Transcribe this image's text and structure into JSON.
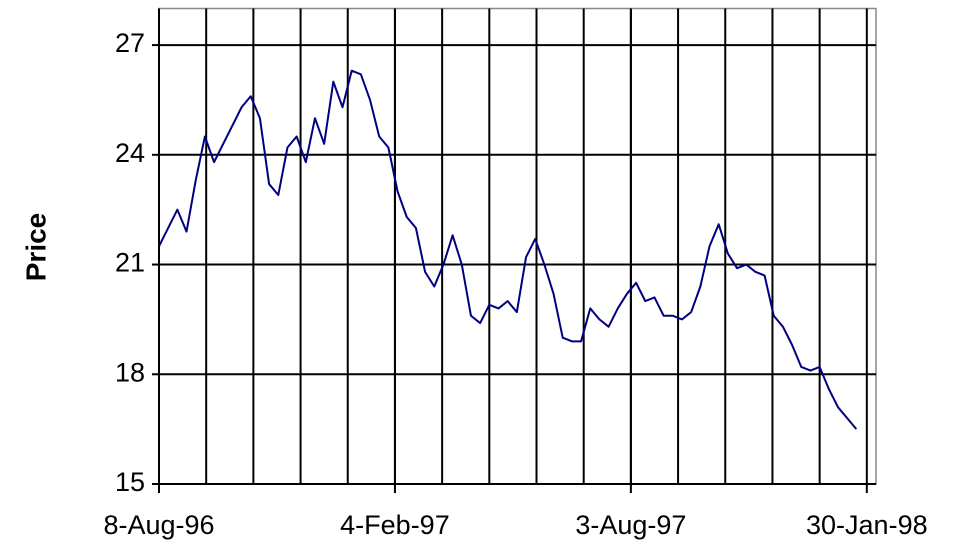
{
  "chart_data": {
    "type": "line",
    "y_label": "Price",
    "x": [
      "1996-08-08",
      "1996-08-15",
      "1996-08-22",
      "1996-08-29",
      "1996-09-05",
      "1996-09-12",
      "1996-09-19",
      "1996-09-26",
      "1996-10-03",
      "1996-10-10",
      "1996-10-17",
      "1996-10-24",
      "1996-10-31",
      "1996-11-07",
      "1996-11-14",
      "1996-11-21",
      "1996-11-28",
      "1996-12-05",
      "1996-12-12",
      "1996-12-19",
      "1996-12-26",
      "1997-01-02",
      "1997-01-09",
      "1997-01-16",
      "1997-01-23",
      "1997-01-30",
      "1997-02-06",
      "1997-02-13",
      "1997-02-20",
      "1997-02-27",
      "1997-03-06",
      "1997-03-13",
      "1997-03-20",
      "1997-03-27",
      "1997-04-03",
      "1997-04-10",
      "1997-04-17",
      "1997-04-24",
      "1997-05-01",
      "1997-05-08",
      "1997-05-15",
      "1997-05-22",
      "1997-05-29",
      "1997-06-05",
      "1997-06-12",
      "1997-06-19",
      "1997-06-26",
      "1997-07-03",
      "1997-07-10",
      "1997-07-17",
      "1997-07-24",
      "1997-07-31",
      "1997-08-07",
      "1997-08-14",
      "1997-08-21",
      "1997-08-28",
      "1997-09-04",
      "1997-09-11",
      "1997-09-18",
      "1997-09-25",
      "1997-10-02",
      "1997-10-09",
      "1997-10-16",
      "1997-10-23",
      "1997-10-30",
      "1997-11-06",
      "1997-11-13",
      "1997-11-20",
      "1997-11-27",
      "1997-12-04",
      "1997-12-11",
      "1997-12-18",
      "1997-12-25",
      "1998-01-01",
      "1998-01-08",
      "1998-01-15",
      "1998-01-22"
    ],
    "series": [
      {
        "name": "Price",
        "color": "#000080",
        "values": [
          21.5,
          22.0,
          22.5,
          21.9,
          23.3,
          24.5,
          23.8,
          24.3,
          24.8,
          25.3,
          25.6,
          25.0,
          23.2,
          22.9,
          24.2,
          24.5,
          23.8,
          25.0,
          24.3,
          26.0,
          25.3,
          26.3,
          26.2,
          25.5,
          24.5,
          24.2,
          23.0,
          22.3,
          22.0,
          20.8,
          20.4,
          21.0,
          21.8,
          21.0,
          19.6,
          19.4,
          19.9,
          19.8,
          20.0,
          19.7,
          21.2,
          21.7,
          21.0,
          20.2,
          19.0,
          18.9,
          18.9,
          19.8,
          19.5,
          19.3,
          19.8,
          20.2,
          20.5,
          20.0,
          20.1,
          19.6,
          19.6,
          19.5,
          19.7,
          20.4,
          21.5,
          22.1,
          21.3,
          20.9,
          21.0,
          20.8,
          20.7,
          19.6,
          19.3,
          18.8,
          18.2,
          18.1,
          18.2,
          17.6,
          17.1,
          16.8,
          16.5
        ]
      }
    ],
    "xlim": [
      "1996-08-08",
      "1998-02-06"
    ],
    "xticks": [
      {
        "value": "1996-08-08",
        "label": "8-Aug-96"
      },
      {
        "value": "1997-02-04",
        "label": "4-Feb-97"
      },
      {
        "value": "1997-08-03",
        "label": "3-Aug-97"
      },
      {
        "value": "1998-01-30",
        "label": "30-Jan-98"
      }
    ],
    "ylim": [
      15,
      28
    ],
    "yticks": [
      15,
      18,
      21,
      24,
      27
    ],
    "grid": true
  }
}
